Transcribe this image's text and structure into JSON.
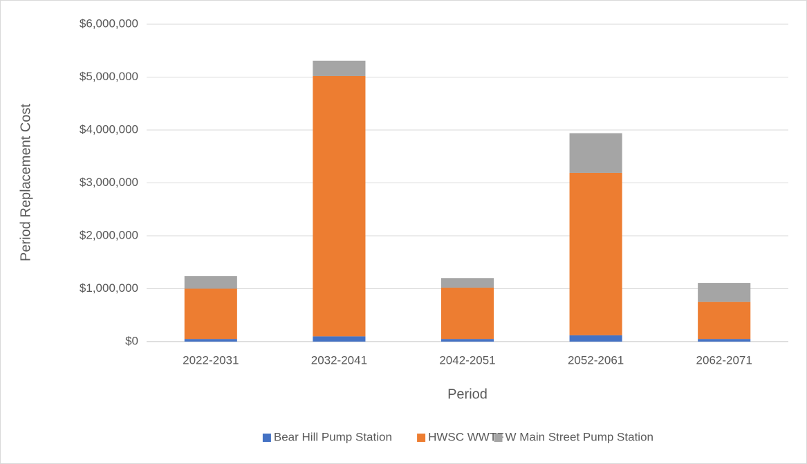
{
  "chart_data": {
    "type": "stacked_bar",
    "xlabel": "Period",
    "ylabel": "Period Replacement Cost",
    "categories": [
      "2022-2031",
      "2032-2041",
      "2042-2051",
      "2052-2061",
      "2062-2071"
    ],
    "series": [
      {
        "name": "Bear Hill Pump Station",
        "color": "#4472c4",
        "values": [
          50000,
          100000,
          50000,
          120000,
          50000
        ]
      },
      {
        "name": "HWSC WWTF",
        "color": "#ed7d31",
        "values": [
          950000,
          4920000,
          970000,
          3070000,
          700000
        ]
      },
      {
        "name": "W Main Street Pump Station",
        "color": "#a5a5a5",
        "values": [
          240000,
          290000,
          180000,
          750000,
          360000
        ]
      }
    ],
    "ylim": [
      0,
      6000000
    ],
    "yticks": [
      {
        "value": 0,
        "label": "$0"
      },
      {
        "value": 1000000,
        "label": "$1,000,000"
      },
      {
        "value": 2000000,
        "label": "$2,000,000"
      },
      {
        "value": 3000000,
        "label": "$3,000,000"
      },
      {
        "value": 4000000,
        "label": "$4,000,000"
      },
      {
        "value": 5000000,
        "label": "$5,000,000"
      },
      {
        "value": 6000000,
        "label": "$6,000,000"
      }
    ],
    "grid": true,
    "legend": "bottom"
  }
}
